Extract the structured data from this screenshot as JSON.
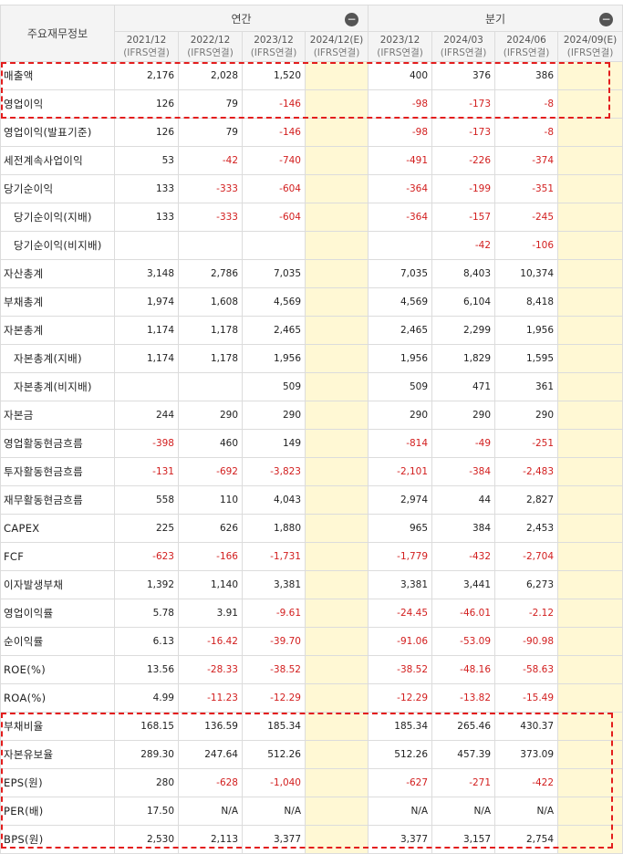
{
  "header": {
    "corner": "주요재무정보",
    "annual_label": "연간",
    "quarter_label": "분기",
    "collapse_glyph": "−",
    "periods": [
      {
        "date": "2021/12",
        "basis": "(IFRS연결)"
      },
      {
        "date": "2022/12",
        "basis": "(IFRS연결)"
      },
      {
        "date": "2023/12",
        "basis": "(IFRS연결)"
      },
      {
        "date": "2024/12(E)",
        "basis": "(IFRS연결)"
      },
      {
        "date": "2023/12",
        "basis": "(IFRS연결)"
      },
      {
        "date": "2024/03",
        "basis": "(IFRS연결)"
      },
      {
        "date": "2024/06",
        "basis": "(IFRS연결)"
      },
      {
        "date": "2024/09(E)",
        "basis": "(IFRS연결)"
      }
    ]
  },
  "rows": [
    {
      "label": "매출액",
      "values": [
        "2,176",
        "2,028",
        "1,520",
        "",
        "400",
        "376",
        "386",
        ""
      ]
    },
    {
      "label": "영업이익",
      "values": [
        "126",
        "79",
        "-146",
        "",
        "-98",
        "-173",
        "-8",
        ""
      ]
    },
    {
      "label": "영업이익(발표기준)",
      "values": [
        "126",
        "79",
        "-146",
        "",
        "-98",
        "-173",
        "-8",
        ""
      ]
    },
    {
      "label": "세전계속사업이익",
      "values": [
        "53",
        "-42",
        "-740",
        "",
        "-491",
        "-226",
        "-374",
        ""
      ]
    },
    {
      "label": "당기순이익",
      "values": [
        "133",
        "-333",
        "-604",
        "",
        "-364",
        "-199",
        "-351",
        ""
      ]
    },
    {
      "label": "당기순이익(지배)",
      "values": [
        "133",
        "-333",
        "-604",
        "",
        "-364",
        "-157",
        "-245",
        ""
      ]
    },
    {
      "label": "당기순이익(비지배)",
      "values": [
        "",
        "",
        "",
        "",
        "",
        "-42",
        "-106",
        ""
      ]
    },
    {
      "label": "자산총계",
      "values": [
        "3,148",
        "2,786",
        "7,035",
        "",
        "7,035",
        "8,403",
        "10,374",
        ""
      ]
    },
    {
      "label": "부채총계",
      "values": [
        "1,974",
        "1,608",
        "4,569",
        "",
        "4,569",
        "6,104",
        "8,418",
        ""
      ]
    },
    {
      "label": "자본총계",
      "values": [
        "1,174",
        "1,178",
        "2,465",
        "",
        "2,465",
        "2,299",
        "1,956",
        ""
      ]
    },
    {
      "label": "자본총계(지배)",
      "values": [
        "1,174",
        "1,178",
        "1,956",
        "",
        "1,956",
        "1,829",
        "1,595",
        ""
      ]
    },
    {
      "label": "자본총계(비지배)",
      "values": [
        "",
        "",
        "509",
        "",
        "509",
        "471",
        "361",
        ""
      ]
    },
    {
      "label": "자본금",
      "values": [
        "244",
        "290",
        "290",
        "",
        "290",
        "290",
        "290",
        ""
      ]
    },
    {
      "label": "영업활동현금흐름",
      "values": [
        "-398",
        "460",
        "149",
        "",
        "-814",
        "-49",
        "-251",
        ""
      ]
    },
    {
      "label": "투자활동현금흐름",
      "values": [
        "-131",
        "-692",
        "-3,823",
        "",
        "-2,101",
        "-384",
        "-2,483",
        ""
      ]
    },
    {
      "label": "재무활동현금흐름",
      "values": [
        "558",
        "110",
        "4,043",
        "",
        "2,974",
        "44",
        "2,827",
        ""
      ]
    },
    {
      "label": "CAPEX",
      "values": [
        "225",
        "626",
        "1,880",
        "",
        "965",
        "384",
        "2,453",
        ""
      ]
    },
    {
      "label": "FCF",
      "values": [
        "-623",
        "-166",
        "-1,731",
        "",
        "-1,779",
        "-432",
        "-2,704",
        ""
      ]
    },
    {
      "label": "이자발생부채",
      "values": [
        "1,392",
        "1,140",
        "3,381",
        "",
        "3,381",
        "3,441",
        "6,273",
        ""
      ]
    },
    {
      "label": "영업이익률",
      "values": [
        "5.78",
        "3.91",
        "-9.61",
        "",
        "-24.45",
        "-46.01",
        "-2.12",
        ""
      ]
    },
    {
      "label": "순이익률",
      "values": [
        "6.13",
        "-16.42",
        "-39.70",
        "",
        "-91.06",
        "-53.09",
        "-90.98",
        ""
      ]
    },
    {
      "label": "ROE(%)",
      "values": [
        "13.56",
        "-28.33",
        "-38.52",
        "",
        "-38.52",
        "-48.16",
        "-58.63",
        ""
      ]
    },
    {
      "label": "ROA(%)",
      "values": [
        "4.99",
        "-11.23",
        "-12.29",
        "",
        "-12.29",
        "-13.82",
        "-15.49",
        ""
      ]
    },
    {
      "label": "부채비율",
      "values": [
        "168.15",
        "136.59",
        "185.34",
        "",
        "185.34",
        "265.46",
        "430.37",
        ""
      ]
    },
    {
      "label": "자본유보율",
      "values": [
        "289.30",
        "247.64",
        "512.26",
        "",
        "512.26",
        "457.39",
        "373.09",
        ""
      ]
    },
    {
      "label": "EPS(원)",
      "values": [
        "280",
        "-628",
        "-1,040",
        "",
        "-627",
        "-271",
        "-422",
        ""
      ]
    },
    {
      "label": "PER(배)",
      "values": [
        "17.50",
        "N/A",
        "N/A",
        "",
        "N/A",
        "N/A",
        "N/A",
        ""
      ]
    },
    {
      "label": "BPS(원)",
      "values": [
        "2,530",
        "2,113",
        "3,377",
        "",
        "3,377",
        "3,157",
        "2,754",
        ""
      ]
    }
  ],
  "colors": {
    "negative": "#d21e1e",
    "estimate_fill": "#fff8d4",
    "highlight": "#e31d1d",
    "header_bg": "#f4f4f4"
  }
}
